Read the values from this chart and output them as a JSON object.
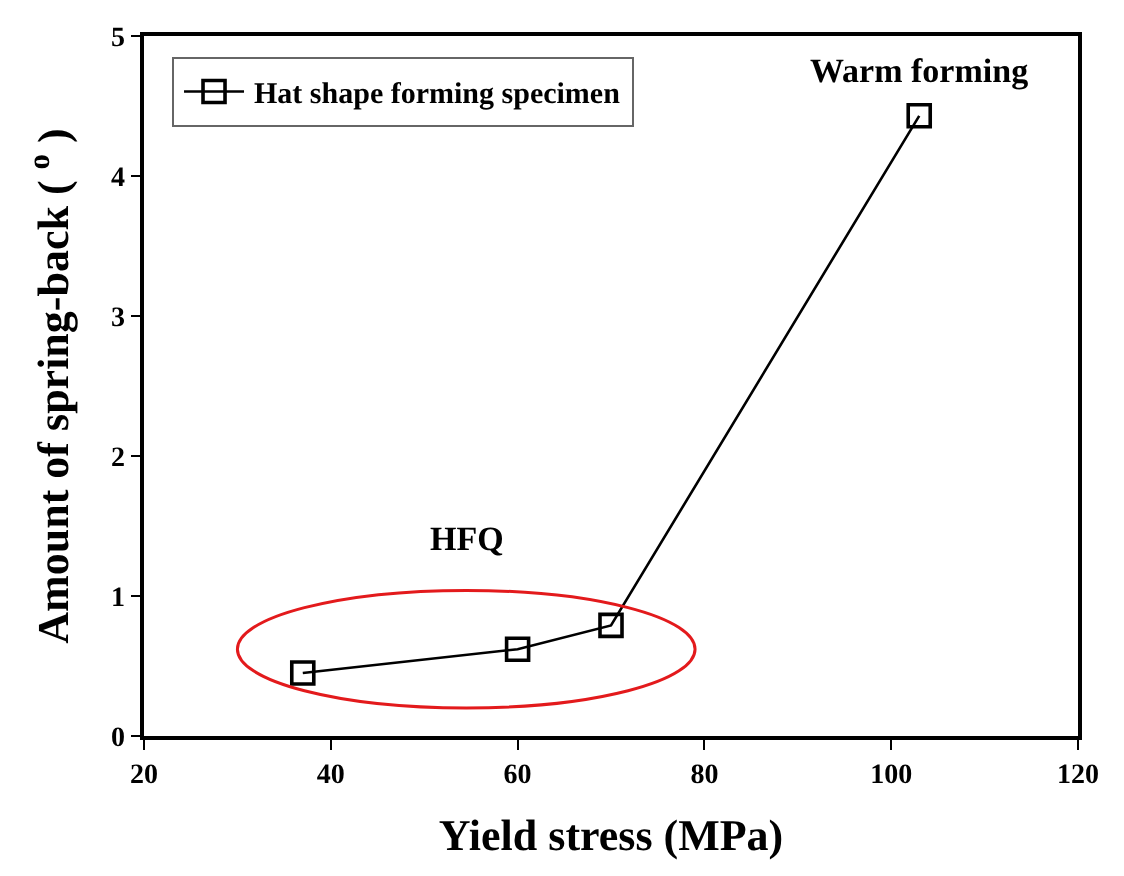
{
  "chart_data": {
    "type": "line",
    "xlabel": "Yield stress (MPa)",
    "ylabel": "Amount of spring-back ( $^{o}$ )",
    "x": [
      37,
      60,
      70,
      103
    ],
    "series": [
      {
        "name": "Hat shape forming specimen",
        "color": "#000000",
        "values": [
          0.45,
          0.62,
          0.79,
          4.43
        ]
      }
    ],
    "xlim": [
      20,
      120
    ],
    "xticks": [
      20,
      40,
      60,
      80,
      100,
      120
    ],
    "ylim": [
      0,
      5
    ],
    "yticks": [
      0,
      1,
      2,
      3,
      4,
      5
    ],
    "annotations": [
      "HFQ",
      {
        "text": "Warm forming",
        "x": 103,
        "y": 4.43
      }
    ],
    "marker": "square",
    "line_style": "solid",
    "legend": "top left"
  }
}
